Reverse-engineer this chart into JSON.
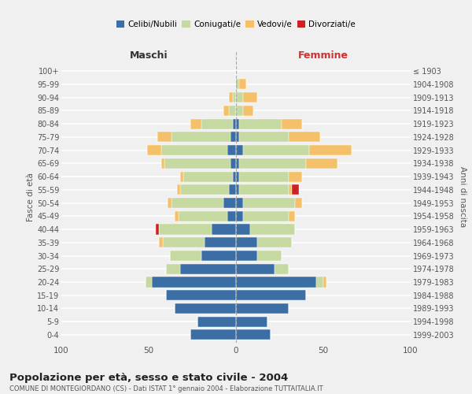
{
  "age_groups": [
    "0-4",
    "5-9",
    "10-14",
    "15-19",
    "20-24",
    "25-29",
    "30-34",
    "35-39",
    "40-44",
    "45-49",
    "50-54",
    "55-59",
    "60-64",
    "65-69",
    "70-74",
    "75-79",
    "80-84",
    "85-89",
    "90-94",
    "95-99",
    "100+"
  ],
  "birth_years": [
    "1999-2003",
    "1994-1998",
    "1989-1993",
    "1984-1988",
    "1979-1983",
    "1974-1978",
    "1969-1973",
    "1964-1968",
    "1959-1963",
    "1954-1958",
    "1949-1953",
    "1944-1948",
    "1939-1943",
    "1934-1938",
    "1929-1933",
    "1924-1928",
    "1919-1923",
    "1914-1918",
    "1909-1913",
    "1904-1908",
    "≤ 1903"
  ],
  "male": {
    "celibe": [
      26,
      22,
      35,
      40,
      48,
      32,
      20,
      18,
      14,
      5,
      7,
      4,
      2,
      3,
      5,
      3,
      2,
      0,
      0,
      0,
      0
    ],
    "coniugato": [
      0,
      0,
      0,
      0,
      4,
      8,
      18,
      24,
      30,
      28,
      30,
      28,
      28,
      38,
      38,
      34,
      18,
      4,
      2,
      0,
      0
    ],
    "vedovo": [
      0,
      0,
      0,
      0,
      0,
      0,
      0,
      2,
      0,
      2,
      2,
      2,
      2,
      2,
      8,
      8,
      6,
      3,
      2,
      0,
      0
    ],
    "divorziato": [
      0,
      0,
      0,
      0,
      0,
      0,
      0,
      0,
      2,
      0,
      0,
      0,
      0,
      0,
      0,
      0,
      0,
      0,
      0,
      0,
      0
    ]
  },
  "female": {
    "nubile": [
      20,
      18,
      30,
      40,
      46,
      22,
      12,
      12,
      8,
      4,
      4,
      2,
      2,
      2,
      4,
      2,
      2,
      0,
      0,
      0,
      0
    ],
    "coniugata": [
      0,
      0,
      0,
      0,
      4,
      8,
      14,
      20,
      26,
      26,
      30,
      28,
      28,
      38,
      38,
      28,
      24,
      4,
      4,
      2,
      0
    ],
    "vedova": [
      0,
      0,
      0,
      0,
      2,
      0,
      0,
      0,
      0,
      4,
      4,
      2,
      8,
      18,
      24,
      18,
      12,
      6,
      8,
      4,
      0
    ],
    "divorziata": [
      0,
      0,
      0,
      0,
      0,
      0,
      0,
      0,
      0,
      0,
      0,
      4,
      0,
      0,
      0,
      0,
      0,
      0,
      0,
      0,
      0
    ]
  },
  "colors": {
    "celibe_nubile": "#3b6ea5",
    "coniugato": "#c5d9a0",
    "vedovo": "#f5c06a",
    "divorziato": "#cc2222"
  },
  "title": "Popolazione per età, sesso e stato civile - 2004",
  "subtitle": "COMUNE DI MONTEGIORDANO (CS) - Dati ISTAT 1° gennaio 2004 - Elaborazione TUTTAITALIA.IT",
  "xlabel_left": "Maschi",
  "xlabel_right": "Femmine",
  "ylabel_left": "Fasce di età",
  "ylabel_right": "Anni di nascita",
  "xlim": 100,
  "background_color": "#f0f0f0"
}
